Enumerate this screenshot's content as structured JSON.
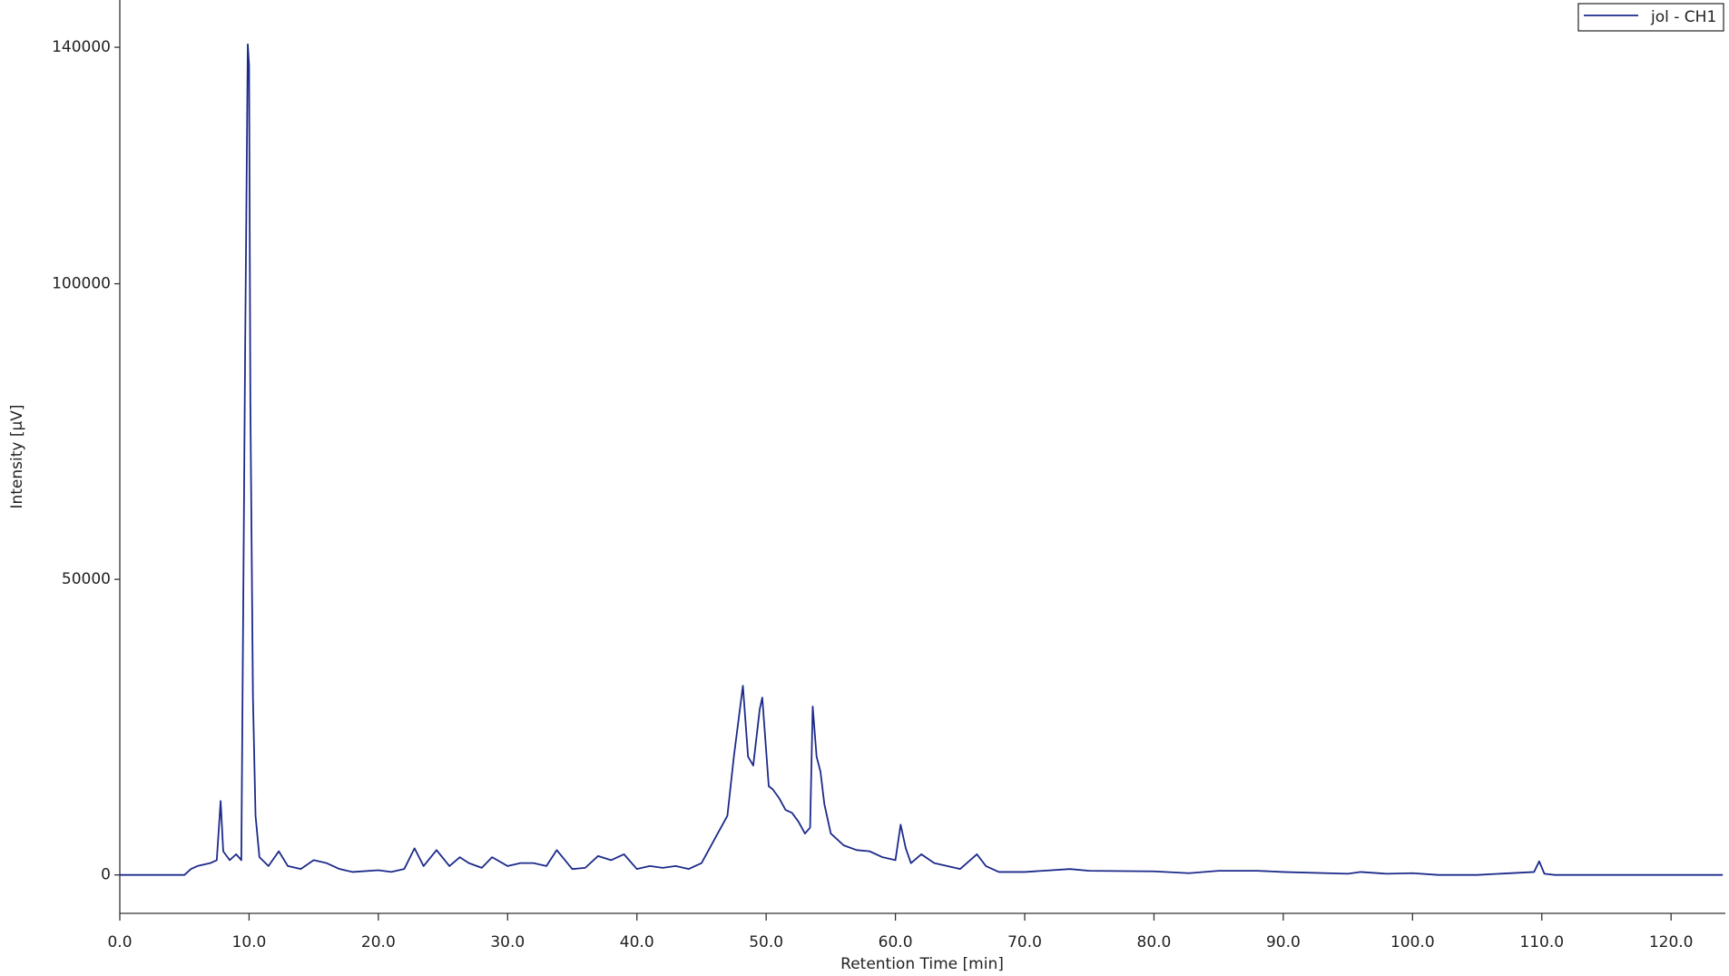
{
  "chart_data": {
    "type": "line",
    "x_label": "Retention Time [min]",
    "y_label": "Intensity [µV]",
    "series": [
      {
        "name": "jol - CH1",
        "color": "#1c2a8a",
        "x": [
          0,
          5,
          5.5,
          6,
          7,
          7.5,
          7.8,
          8.0,
          8.5,
          9.0,
          9.4,
          9.7,
          9.9,
          10.0,
          10.1,
          10.3,
          10.5,
          10.8,
          11.5,
          12.3,
          13,
          14,
          15,
          16,
          17,
          18,
          20,
          21,
          22,
          22.8,
          23.5,
          24.5,
          25.5,
          26.3,
          27,
          28,
          28.8,
          30,
          31,
          32,
          33,
          33.8,
          35,
          36,
          37,
          38,
          39,
          40,
          41,
          42,
          43,
          44,
          45,
          46,
          46.5,
          47,
          47.5,
          48.2,
          48.6,
          49,
          49.5,
          49.7,
          50.2,
          50.5,
          51,
          51.5,
          52,
          52.5,
          53,
          53.4,
          53.6,
          53.9,
          54.2,
          54.5,
          55,
          56,
          57,
          58,
          59,
          60,
          60.4,
          60.8,
          61.2,
          62,
          63,
          64,
          65,
          66.3,
          67,
          68,
          70,
          73.5,
          75,
          80,
          82.7,
          85,
          88,
          90,
          95,
          96,
          98,
          100,
          102,
          105,
          109.4,
          109.8,
          110.2,
          111,
          124
        ],
        "values": [
          0,
          0,
          1000,
          1500,
          2000,
          2500,
          12500,
          4000,
          2500,
          3500,
          2500,
          90000,
          140500,
          137000,
          80000,
          30000,
          10000,
          3000,
          1500,
          4000,
          1500,
          1000,
          2500,
          2000,
          1000,
          500,
          800,
          500,
          1000,
          4500,
          1500,
          4200,
          1500,
          3000,
          2000,
          1200,
          3000,
          1500,
          2000,
          2000,
          1500,
          4200,
          1000,
          1200,
          3200,
          2500,
          3500,
          1000,
          1500,
          1200,
          1500,
          1000,
          2000,
          6000,
          8000,
          10000,
          20000,
          32000,
          20000,
          18500,
          28000,
          30000,
          15000,
          14500,
          13000,
          11000,
          10500,
          9000,
          7000,
          8000,
          28500,
          20000,
          17500,
          12000,
          7000,
          5000,
          4200,
          4000,
          3000,
          2500,
          8500,
          4500,
          2000,
          3500,
          2000,
          1500,
          1000,
          3500,
          1500,
          500,
          500,
          1000,
          700,
          600,
          300,
          700,
          700,
          500,
          200,
          500,
          200,
          300,
          0,
          0,
          500,
          2300,
          200,
          0,
          0
        ]
      }
    ],
    "xlim": [
      0,
      124.2
    ],
    "ylim": [
      -6500,
      148000
    ],
    "xticks": [
      {
        "value": 0,
        "label": "0.0"
      },
      {
        "value": 10,
        "label": "10.0"
      },
      {
        "value": 20,
        "label": "20.0"
      },
      {
        "value": 30,
        "label": "30.0"
      },
      {
        "value": 40,
        "label": "40.0"
      },
      {
        "value": 50,
        "label": "50.0"
      },
      {
        "value": 60,
        "label": "60.0"
      },
      {
        "value": 70,
        "label": "70.0"
      },
      {
        "value": 80,
        "label": "80.0"
      },
      {
        "value": 90,
        "label": "90.0"
      },
      {
        "value": 100,
        "label": "100.0"
      },
      {
        "value": 110,
        "label": "110.0"
      },
      {
        "value": 120,
        "label": "120.0"
      }
    ],
    "yticks": [
      0,
      50000,
      100000,
      140000
    ],
    "legend": "top-right"
  }
}
